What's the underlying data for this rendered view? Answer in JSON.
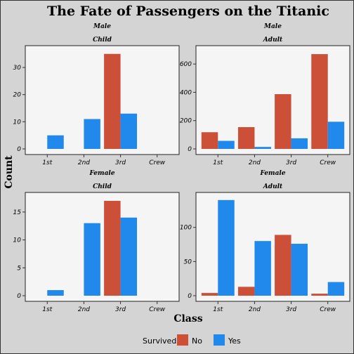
{
  "chart_data": {
    "type": "bar",
    "title": "The Fate of Passengers on the Titanic",
    "xlabel": "Class",
    "ylabel": "Count",
    "categories": [
      "1st",
      "2nd",
      "3rd",
      "Crew"
    ],
    "legend": {
      "title": "Survived",
      "position": "bottom",
      "entries": [
        {
          "label": "No",
          "color": "#cc5038"
        },
        {
          "label": "Yes",
          "color": "#2188ec"
        }
      ]
    },
    "facets": [
      {
        "sex": "Male",
        "age": "Child",
        "ylim": [
          0,
          37
        ],
        "yticks": [
          0,
          10,
          20,
          30
        ],
        "series": [
          {
            "name": "No",
            "values": [
              0,
              0,
              35,
              0
            ]
          },
          {
            "name": "Yes",
            "values": [
              5,
              11,
              13,
              0
            ]
          }
        ]
      },
      {
        "sex": "Male",
        "age": "Adult",
        "ylim": [
          0,
          710
        ],
        "yticks": [
          0,
          200,
          400,
          600
        ],
        "series": [
          {
            "name": "No",
            "values": [
              118,
              154,
              387,
              670
            ]
          },
          {
            "name": "Yes",
            "values": [
              57,
              14,
              75,
              192
            ]
          }
        ]
      },
      {
        "sex": "Female",
        "age": "Child",
        "ylim": [
          0,
          18
        ],
        "yticks": [
          0,
          5,
          10,
          15
        ],
        "series": [
          {
            "name": "No",
            "values": [
              0,
              0,
              17,
              0
            ]
          },
          {
            "name": "Yes",
            "values": [
              1,
              13,
              14,
              0
            ]
          }
        ]
      },
      {
        "sex": "Female",
        "age": "Adult",
        "ylim": [
          0,
          147
        ],
        "yticks": [
          0,
          50,
          100
        ],
        "series": [
          {
            "name": "No",
            "values": [
              4,
              13,
              89,
              3
            ]
          },
          {
            "name": "Yes",
            "values": [
              140,
              80,
              76,
              20
            ]
          }
        ]
      }
    ],
    "colors": {
      "background": "#d4d4d4",
      "panel": "#f5f5f5",
      "no": "#cc5038",
      "yes": "#2188ec"
    }
  }
}
